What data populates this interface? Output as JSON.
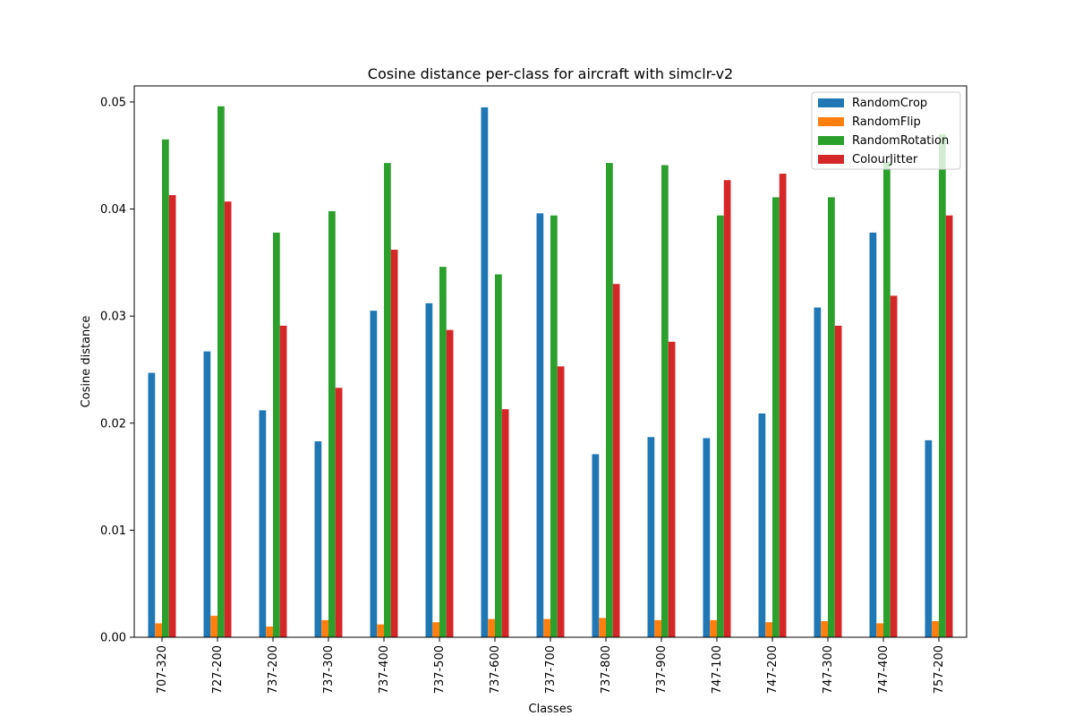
{
  "chart_data": {
    "type": "bar",
    "title": "Cosine distance per-class for aircraft with simclr-v2",
    "xlabel": "Classes",
    "ylabel": "Cosine distance",
    "ylim": [
      0,
      0.0515
    ],
    "yticks": [
      0.0,
      0.01,
      0.02,
      0.03,
      0.04,
      0.05
    ],
    "ytick_labels": [
      "0.00",
      "0.01",
      "0.02",
      "0.03",
      "0.04",
      "0.05"
    ],
    "grid": false,
    "legend_position": "top-right",
    "categories": [
      "707-320",
      "727-200",
      "737-200",
      "737-300",
      "737-400",
      "737-500",
      "737-600",
      "737-700",
      "737-800",
      "737-900",
      "747-100",
      "747-200",
      "747-300",
      "747-400",
      "757-200"
    ],
    "series": [
      {
        "name": "RandomCrop",
        "color": "#1f77b4",
        "values": [
          0.0247,
          0.0267,
          0.0212,
          0.0183,
          0.0305,
          0.0312,
          0.0495,
          0.0396,
          0.0171,
          0.0187,
          0.0186,
          0.0209,
          0.0308,
          0.0378,
          0.0184
        ]
      },
      {
        "name": "RandomFlip",
        "color": "#ff7f0e",
        "values": [
          0.0013,
          0.002,
          0.001,
          0.0016,
          0.0012,
          0.0014,
          0.0017,
          0.0017,
          0.0018,
          0.0016,
          0.0016,
          0.0014,
          0.0015,
          0.0013,
          0.0015
        ]
      },
      {
        "name": "RandomRotation",
        "color": "#2ca02c",
        "values": [
          0.0465,
          0.0496,
          0.0378,
          0.0398,
          0.0443,
          0.0346,
          0.0339,
          0.0394,
          0.0443,
          0.0441,
          0.0394,
          0.0411,
          0.0411,
          0.0444,
          0.047
        ]
      },
      {
        "name": "ColourJitter",
        "color": "#d62728",
        "values": [
          0.0413,
          0.0407,
          0.0291,
          0.0233,
          0.0362,
          0.0287,
          0.0213,
          0.0253,
          0.033,
          0.0276,
          0.0427,
          0.0433,
          0.0291,
          0.0319,
          0.0394
        ]
      }
    ]
  }
}
